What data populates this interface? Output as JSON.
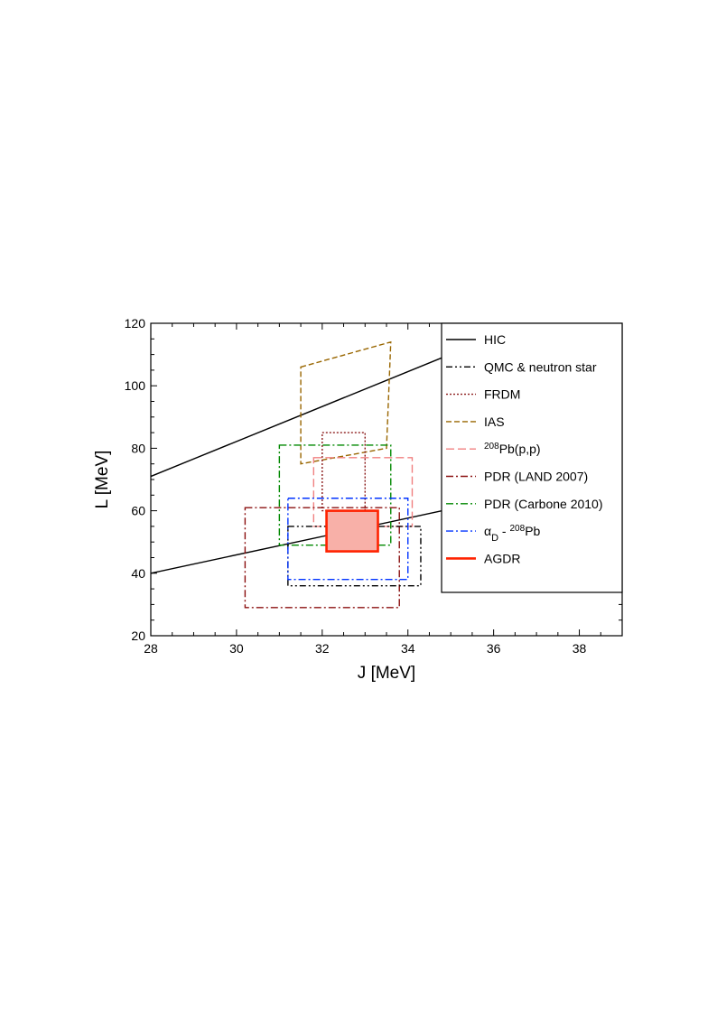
{
  "chart_data": {
    "type": "line",
    "title": "",
    "xlabel": "J [MeV]",
    "ylabel": "L [MeV]",
    "xlim": [
      28,
      39
    ],
    "ylim": [
      20,
      120
    ],
    "x_ticks": [
      28,
      30,
      32,
      34,
      36,
      38
    ],
    "y_ticks": [
      20,
      40,
      60,
      80,
      100,
      120
    ],
    "grid": false,
    "legend_position": "top-right",
    "legend": [
      {
        "id": "hic",
        "label": "HIC"
      },
      {
        "id": "qmc",
        "label": "QMC & neutron star"
      },
      {
        "id": "frdm",
        "label": "FRDM"
      },
      {
        "id": "ias",
        "label": "IAS"
      },
      {
        "id": "pbpp",
        "label_sup": "208",
        "label": "Pb(p,p)"
      },
      {
        "id": "pdr_land",
        "label": "PDR (LAND 2007)"
      },
      {
        "id": "pdr_carb",
        "label": "PDR (Carbone 2010)"
      },
      {
        "id": "alphad",
        "label_base": "α",
        "label_sub": "D",
        "label_mid": " - ",
        "label_sup": "208",
        "label": "Pb"
      },
      {
        "id": "agdr",
        "label": "AGDR"
      }
    ],
    "series": [
      {
        "id": "hic",
        "name": "HIC",
        "shape": "lines",
        "color": "#000000",
        "dash": "solid",
        "lines": [
          [
            [
              28,
              71
            ],
            [
              34.8,
              109
            ]
          ],
          [
            [
              28,
              40
            ],
            [
              34.8,
              60
            ]
          ]
        ]
      },
      {
        "id": "ias",
        "name": "IAS",
        "shape": "polygon",
        "color": "#996600",
        "dash": "dash",
        "points": [
          [
            31.5,
            106
          ],
          [
            33.6,
            114
          ],
          [
            33.5,
            80
          ],
          [
            31.5,
            75
          ]
        ]
      },
      {
        "id": "frdm",
        "name": "FRDM",
        "shape": "rect",
        "color": "#8b1a1a",
        "dash": "dot",
        "x": [
          32,
          33
        ],
        "y": [
          60,
          85
        ]
      },
      {
        "id": "pbpp",
        "name": "208Pb(p,p)",
        "shape": "rect",
        "color": "#f08080",
        "dash": "longdash",
        "x": [
          31.8,
          34.1
        ],
        "y": [
          55,
          77
        ]
      },
      {
        "id": "pdr_carb",
        "name": "PDR (Carbone 2010)",
        "shape": "rect",
        "color": "#008800",
        "dash": "dashdot",
        "x": [
          31,
          33.6
        ],
        "y": [
          49,
          81
        ]
      },
      {
        "id": "pdr_land",
        "name": "PDR (LAND 2007)",
        "shape": "rect",
        "color": "#8b1010",
        "dash": "dashdot",
        "x": [
          30.2,
          33.8
        ],
        "y": [
          29,
          61
        ]
      },
      {
        "id": "qmc",
        "name": "QMC & neutron star",
        "shape": "rect",
        "color": "#000000",
        "dash": "dashdotdot",
        "x": [
          31.2,
          34.3
        ],
        "y": [
          36,
          55
        ]
      },
      {
        "id": "alphad",
        "name": "αD - 208Pb",
        "shape": "rect",
        "color": "#0033ff",
        "dash": "dashdot",
        "x": [
          31.2,
          34
        ],
        "y": [
          38,
          64
        ]
      },
      {
        "id": "agdr",
        "name": "AGDR",
        "shape": "rect",
        "color": "#ff2200",
        "fill": "#f8b0a8",
        "dash": "solid",
        "x": [
          32.1,
          33.3
        ],
        "y": [
          47,
          60
        ]
      }
    ]
  }
}
